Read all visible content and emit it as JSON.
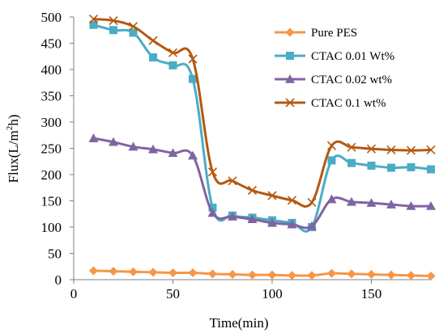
{
  "chart_data": {
    "type": "line",
    "xlabel": "Time(min)",
    "ylabel_main": "Flux(L/m",
    "ylabel_sup": "2",
    "ylabel_end": "h)",
    "xlim": [
      0,
      180
    ],
    "ylim": [
      0,
      500
    ],
    "xticks": [
      0,
      50,
      100,
      150
    ],
    "yticks": [
      0,
      50,
      100,
      150,
      200,
      250,
      300,
      350,
      400,
      450,
      500
    ],
    "grid": false,
    "legend_position": "top-right",
    "series": [
      {
        "name": "Pure PES",
        "color": "#F79646",
        "marker": "diamond",
        "x": [
          10,
          20,
          30,
          40,
          50,
          60,
          70,
          80,
          90,
          100,
          110,
          120,
          130,
          140,
          150,
          160,
          170,
          180
        ],
        "y": [
          17,
          16,
          15,
          14,
          13,
          13,
          11,
          10,
          9,
          9,
          8,
          8,
          12,
          11,
          10,
          9,
          8,
          7
        ]
      },
      {
        "name": "CTAC 0.01 Wt%",
        "color": "#4BACC6",
        "marker": "square",
        "x": [
          10,
          20,
          30,
          40,
          50,
          60,
          70,
          80,
          90,
          100,
          110,
          120,
          130,
          140,
          150,
          160,
          170,
          180
        ],
        "y": [
          485,
          475,
          470,
          423,
          408,
          382,
          137,
          122,
          118,
          113,
          108,
          100,
          227,
          222,
          217,
          213,
          214,
          210
        ]
      },
      {
        "name": "CTAC 0.02 wt%",
        "color": "#8064A2",
        "marker": "triangle",
        "x": [
          10,
          20,
          30,
          40,
          50,
          60,
          70,
          80,
          90,
          100,
          110,
          120,
          130,
          140,
          150,
          160,
          170,
          180
        ],
        "y": [
          269,
          262,
          253,
          248,
          241,
          236,
          127,
          120,
          115,
          108,
          105,
          102,
          153,
          148,
          146,
          143,
          140,
          140
        ]
      },
      {
        "name": "CTAC 0.1 wt%",
        "color": "#B4580F",
        "marker": "x",
        "x": [
          10,
          20,
          30,
          40,
          50,
          60,
          70,
          80,
          90,
          100,
          110,
          120,
          130,
          140,
          150,
          160,
          170,
          180
        ],
        "y": [
          496,
          493,
          482,
          455,
          432,
          420,
          205,
          188,
          170,
          160,
          151,
          147,
          255,
          252,
          249,
          247,
          246,
          247
        ]
      }
    ]
  }
}
